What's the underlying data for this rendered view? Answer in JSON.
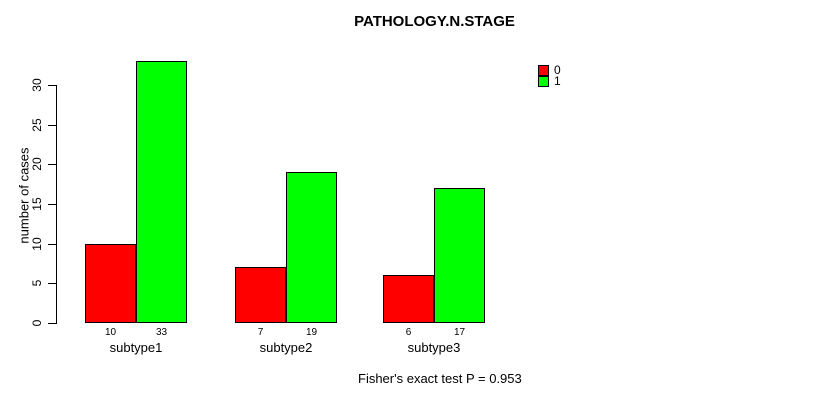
{
  "chart_data": {
    "type": "bar",
    "title": "PATHOLOGY.N.STAGE",
    "ylabel": "number of cases",
    "xlabel": "",
    "categories": [
      "subtype1",
      "subtype2",
      "subtype3"
    ],
    "series": [
      {
        "name": "0",
        "color": "#ff0000",
        "values": [
          10,
          7,
          6
        ]
      },
      {
        "name": "1",
        "color": "#00ff00",
        "values": [
          33,
          19,
          17
        ]
      }
    ],
    "yticks": [
      0,
      5,
      10,
      15,
      20,
      25,
      30
    ],
    "ylim": [
      0,
      33
    ],
    "bar_value_labels_shown": true,
    "grid": false,
    "legend_position": "top-right",
    "footnote": "Fisher's exact test P = 0.953"
  },
  "colors": {
    "series_0": "#ff0000",
    "series_1": "#00ff00",
    "axis": "#000000",
    "bar_border": "#000000",
    "text": "#000000",
    "background": "#ffffff"
  }
}
